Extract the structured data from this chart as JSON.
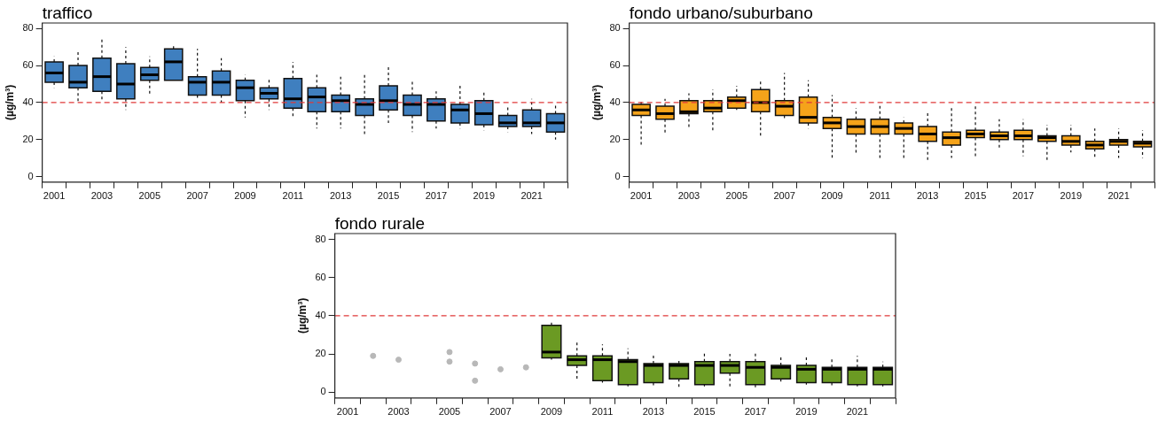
{
  "chart_data": [
    {
      "type": "box",
      "title": "traffico",
      "ylabel": "(µg/m³)",
      "categories": [
        "2001",
        null,
        "2003",
        null,
        "2005",
        null,
        "2007",
        null,
        "2009",
        null,
        "2011",
        null,
        "2013",
        null,
        "2015",
        null,
        "2017",
        null,
        "2019",
        null,
        "2021",
        null
      ],
      "ylim": [
        -3,
        83
      ],
      "yticks": [
        0,
        20,
        40,
        60,
        80
      ],
      "grid": false,
      "legend": false,
      "ref_lines": [
        {
          "axis": "y",
          "value": 40,
          "color": "#e03a3a",
          "line_style": "dashed"
        }
      ],
      "series": [
        {
          "color": "#3f7fbf",
          "boxes": [
            {
              "low": 48,
              "q1": 51,
              "median": 56,
              "q3": 62,
              "high": 65
            },
            {
              "low": 40,
              "q1": 48,
              "median": 51,
              "q3": 60,
              "high": 68
            },
            {
              "low": 41,
              "q1": 46,
              "median": 54,
              "q3": 64,
              "high": 75
            },
            {
              "low": 36,
              "q1": 42,
              "median": 50,
              "q3": 61,
              "high": 70
            },
            {
              "low": 44,
              "q1": 52,
              "median": 55,
              "q3": 59,
              "high": 65
            },
            {
              "low": 52,
              "q1": 52,
              "median": 62,
              "q3": 69,
              "high": 71
            },
            {
              "low": 42,
              "q1": 44,
              "median": 51,
              "q3": 54,
              "high": 69
            },
            {
              "low": 40,
              "q1": 44,
              "median": 51,
              "q3": 57,
              "high": 64
            },
            {
              "low": 32,
              "q1": 41,
              "median": 48,
              "q3": 52,
              "high": 55
            },
            {
              "low": 36,
              "q1": 42,
              "median": 45,
              "q3": 48,
              "high": 53
            },
            {
              "low": 32,
              "q1": 37,
              "median": 42,
              "q3": 53,
              "high": 62
            },
            {
              "low": 26,
              "q1": 35,
              "median": 43,
              "q3": 48,
              "high": 55
            },
            {
              "low": 26,
              "q1": 35,
              "median": 41,
              "q3": 44,
              "high": 54
            },
            {
              "low": 22,
              "q1": 33,
              "median": 39,
              "q3": 42,
              "high": 55
            },
            {
              "low": 29,
              "q1": 36,
              "median": 41,
              "q3": 49,
              "high": 60
            },
            {
              "low": 24,
              "q1": 33,
              "median": 39,
              "q3": 44,
              "high": 52
            },
            {
              "low": 26,
              "q1": 30,
              "median": 39,
              "q3": 42,
              "high": 46
            },
            {
              "low": 26,
              "q1": 29,
              "median": 36,
              "q3": 39,
              "high": 49
            },
            {
              "low": 25,
              "q1": 28,
              "median": 34,
              "q3": 41,
              "high": 46
            },
            {
              "low": 24,
              "q1": 27,
              "median": 29,
              "q3": 33,
              "high": 38
            },
            {
              "low": 23,
              "q1": 27,
              "median": 29,
              "q3": 36,
              "high": 42
            },
            {
              "low": 20,
              "q1": 24,
              "median": 29,
              "q3": 34,
              "high": 39
            }
          ]
        }
      ]
    },
    {
      "type": "box",
      "title": "fondo urbano/suburbano",
      "ylabel": "(µg/m³)",
      "categories": [
        "2001",
        null,
        "2003",
        null,
        "2005",
        null,
        "2007",
        null,
        "2009",
        null,
        "2011",
        null,
        "2013",
        null,
        "2015",
        null,
        "2017",
        null,
        "2019",
        null,
        "2021",
        null
      ],
      "ylim": [
        -3,
        83
      ],
      "yticks": [
        0,
        20,
        40,
        60,
        80
      ],
      "grid": false,
      "legend": false,
      "ref_lines": [
        {
          "axis": "y",
          "value": 40,
          "color": "#e03a3a",
          "line_style": "dashed"
        }
      ],
      "series": [
        {
          "color": "#f5a31a",
          "boxes": [
            {
              "low": 17,
              "q1": 33,
              "median": 36,
              "q3": 39,
              "high": 41
            },
            {
              "low": 23,
              "q1": 31,
              "median": 34,
              "q3": 38,
              "high": 42
            },
            {
              "low": 26,
              "q1": 34,
              "median": 35,
              "q3": 41,
              "high": 45
            },
            {
              "low": 24,
              "q1": 35,
              "median": 37,
              "q3": 41,
              "high": 47
            },
            {
              "low": 36,
              "q1": 37,
              "median": 41,
              "q3": 43,
              "high": 49
            },
            {
              "low": 21,
              "q1": 35,
              "median": 40,
              "q3": 47,
              "high": 52
            },
            {
              "low": 31,
              "q1": 33,
              "median": 38,
              "q3": 41,
              "high": 56
            },
            {
              "low": 26,
              "q1": 29,
              "median": 32,
              "q3": 43,
              "high": 52
            },
            {
              "low": 10,
              "q1": 26,
              "median": 29,
              "q3": 32,
              "high": 44
            },
            {
              "low": 12,
              "q1": 23,
              "median": 27,
              "q3": 31,
              "high": 37
            },
            {
              "low": 10,
              "q1": 23,
              "median": 27,
              "q3": 31,
              "high": 39
            },
            {
              "low": 10,
              "q1": 23,
              "median": 26,
              "q3": 29,
              "high": 32
            },
            {
              "low": 9,
              "q1": 19,
              "median": 23,
              "q3": 27,
              "high": 35
            },
            {
              "low": 10,
              "q1": 17,
              "median": 21,
              "q3": 24,
              "high": 38
            },
            {
              "low": 10,
              "q1": 21,
              "median": 23,
              "q3": 25,
              "high": 38
            },
            {
              "low": 15,
              "q1": 20,
              "median": 22,
              "q3": 24,
              "high": 31
            },
            {
              "low": 11,
              "q1": 20,
              "median": 22,
              "q3": 25,
              "high": 31
            },
            {
              "low": 9,
              "q1": 19,
              "median": 21,
              "q3": 22,
              "high": 28
            },
            {
              "low": 13,
              "q1": 17,
              "median": 19,
              "q3": 22,
              "high": 28
            },
            {
              "low": 10,
              "q1": 15,
              "median": 17,
              "q3": 19,
              "high": 26
            },
            {
              "low": 10,
              "q1": 17,
              "median": 19,
              "q3": 20,
              "high": 26
            },
            {
              "low": 10,
              "q1": 16,
              "median": 18,
              "q3": 19,
              "high": 25
            }
          ]
        }
      ]
    },
    {
      "type": "box",
      "title": "fondo rurale",
      "ylabel": "(µg/m³)",
      "categories": [
        "2001",
        null,
        "2003",
        null,
        "2005",
        null,
        "2007",
        null,
        "2009",
        null,
        "2011",
        null,
        "2013",
        null,
        "2015",
        null,
        "2017",
        null,
        "2019",
        null,
        "2021",
        null
      ],
      "ylim": [
        -3,
        83
      ],
      "yticks": [
        0,
        20,
        40,
        60,
        80
      ],
      "grid": false,
      "legend": false,
      "marker": "circle",
      "ref_lines": [
        {
          "axis": "y",
          "value": 40,
          "color": "#e03a3a",
          "line_style": "dashed"
        }
      ],
      "series": [
        {
          "color": "#6b9a23",
          "boxes": [
            null,
            null,
            null,
            null,
            null,
            null,
            null,
            null,
            {
              "low": 17,
              "q1": 18,
              "median": 21,
              "q3": 35,
              "high": 37
            },
            {
              "low": 6,
              "q1": 14,
              "median": 17,
              "q3": 19,
              "high": 27
            },
            {
              "low": 5,
              "q1": 6,
              "median": 17,
              "q3": 19,
              "high": 25
            },
            {
              "low": 3,
              "q1": 4,
              "median": 16,
              "q3": 17,
              "high": 23
            },
            {
              "low": 3,
              "q1": 5,
              "median": 14,
              "q3": 15,
              "high": 20
            },
            {
              "low": 2,
              "q1": 7,
              "median": 14,
              "q3": 15,
              "high": 17
            },
            {
              "low": 3,
              "q1": 4,
              "median": 14,
              "q3": 16,
              "high": 21
            },
            {
              "low": 3,
              "q1": 10,
              "median": 14,
              "q3": 16,
              "high": 20
            },
            {
              "low": 2,
              "q1": 4,
              "median": 13,
              "q3": 16,
              "high": 21
            },
            {
              "low": 5,
              "q1": 7,
              "median": 13,
              "q3": 14,
              "high": 19
            },
            {
              "low": 4,
              "q1": 5,
              "median": 12,
              "q3": 14,
              "high": 19
            },
            {
              "low": 3,
              "q1": 5,
              "median": 12,
              "q3": 13,
              "high": 18
            },
            {
              "low": 3,
              "q1": 4,
              "median": 12,
              "q3": 13,
              "high": 19
            },
            {
              "low": 3,
              "q1": 4,
              "median": 12,
              "q3": 13,
              "high": 16
            }
          ]
        },
        {
          "type": "scatter",
          "color": "#b8b8b8",
          "values": [
            null,
            19,
            17,
            null,
            21,
            6,
            12,
            13,
            null,
            null,
            null,
            null,
            null,
            null,
            null,
            null,
            null,
            null,
            null,
            null,
            null,
            null
          ]
        },
        {
          "type": "scatter",
          "color": "#b8b8b8",
          "values": [
            null,
            null,
            null,
            null,
            16,
            15,
            null,
            null,
            null,
            null,
            null,
            null,
            null,
            null,
            null,
            null,
            null,
            null,
            null,
            null,
            null,
            null
          ]
        }
      ]
    }
  ]
}
